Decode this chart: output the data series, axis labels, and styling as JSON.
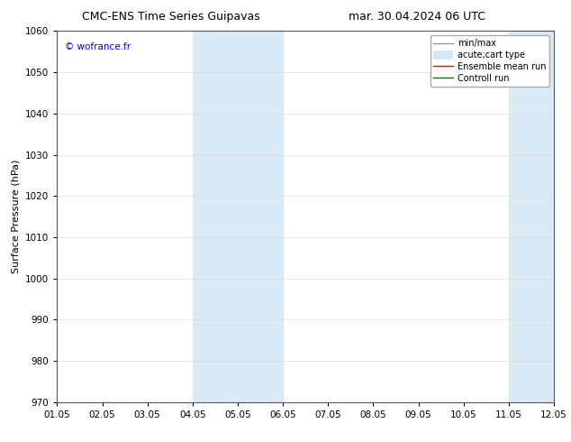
{
  "title_left": "CMC-ENS Time Series Guipavas",
  "title_right": "mar. 30.04.2024 06 UTC",
  "ylabel": "Surface Pressure (hPa)",
  "ylim": [
    970,
    1060
  ],
  "yticks": [
    970,
    980,
    990,
    1000,
    1010,
    1020,
    1030,
    1040,
    1050,
    1060
  ],
  "xlim": [
    0,
    11
  ],
  "xtick_labels": [
    "01.05",
    "02.05",
    "03.05",
    "04.05",
    "05.05",
    "06.05",
    "07.05",
    "08.05",
    "09.05",
    "10.05",
    "11.05",
    "12.05"
  ],
  "xtick_positions": [
    0,
    1,
    2,
    3,
    4,
    5,
    6,
    7,
    8,
    9,
    10,
    11
  ],
  "watermark": "© wofrance.fr",
  "shaded_regions": [
    {
      "xmin": 3,
      "xmax": 5,
      "color": "#daeaf7"
    },
    {
      "xmin": 10,
      "xmax": 12,
      "color": "#daeaf7"
    }
  ],
  "legend_entries": [
    {
      "label": "min/max",
      "color": "#999999"
    },
    {
      "label": "acute;cart type",
      "color": "#d0e8f5"
    },
    {
      "label": "Ensemble mean run",
      "color": "red"
    },
    {
      "label": "Controll run",
      "color": "green"
    }
  ],
  "bg_color": "#ffffff",
  "grid_color": "#dddddd",
  "title_fontsize": 9,
  "axis_fontsize": 8,
  "tick_fontsize": 7.5,
  "legend_fontsize": 7
}
